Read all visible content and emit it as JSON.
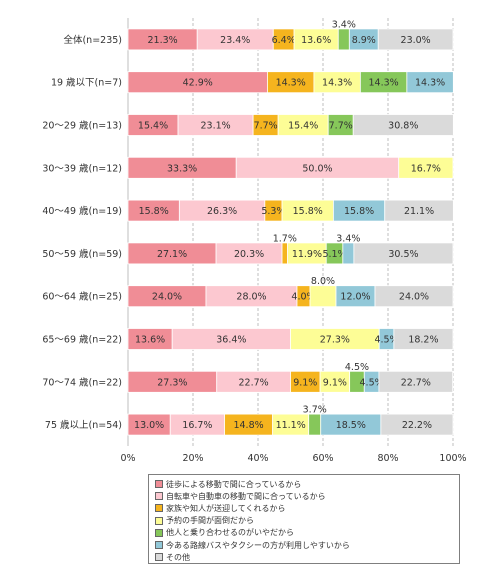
{
  "chart_data": {
    "type": "bar",
    "stacked": true,
    "orientation": "horizontal",
    "categories": [
      "全体(n=235)",
      "19 歳以下(n=7)",
      "20～29 歳(n=13)",
      "30～39 歳(n=12)",
      "40～49 歳(n=19)",
      "50～59 歳(n=59)",
      "60～64 歳(n=25)",
      "65～69 歳(n=22)",
      "70～74 歳(n=22)",
      "75 歳以上(n=54)"
    ],
    "series": [
      {
        "name": "徒歩による移動で間に合っているから",
        "color": "#f08d96",
        "values": [
          21.3,
          42.9,
          15.4,
          33.3,
          15.8,
          27.1,
          24.0,
          13.6,
          27.3,
          13.0
        ]
      },
      {
        "name": "自転車や自動車の移動で間に合っているから",
        "color": "#fcc8d0",
        "values": [
          23.4,
          0,
          23.1,
          50.0,
          26.3,
          20.3,
          28.0,
          36.4,
          22.7,
          16.7
        ]
      },
      {
        "name": "家族や知人が送迎してくれるから",
        "color": "#f5b41e",
        "values": [
          6.4,
          14.3,
          7.7,
          0,
          5.3,
          1.7,
          4.0,
          0,
          9.1,
          14.8
        ]
      },
      {
        "name": "予約の手間が面倒だから",
        "color": "#fdfd96",
        "values": [
          13.6,
          14.3,
          15.4,
          16.7,
          15.8,
          11.9,
          8.0,
          27.3,
          9.1,
          11.1
        ]
      },
      {
        "name": "他人と乗り合わせるのがいやだから",
        "color": "#86c75a",
        "values": [
          3.4,
          14.3,
          7.7,
          0,
          0,
          5.1,
          0,
          0,
          4.5,
          3.7
        ]
      },
      {
        "name": "今ある路線バスやタクシーの方が利用しやすいから",
        "color": "#92c8d8",
        "values": [
          8.9,
          14.3,
          0,
          0,
          15.8,
          3.4,
          12.0,
          4.5,
          4.5,
          18.5
        ]
      },
      {
        "name": "その他",
        "color": "#dadada",
        "values": [
          23.0,
          0,
          30.8,
          0,
          21.1,
          30.5,
          24.0,
          18.2,
          22.7,
          22.2
        ]
      }
    ],
    "data_labels": [
      [
        "21.3%",
        "23.4%",
        "6.4%",
        "13.6%",
        "3.4%",
        "8.9%",
        "23.0%"
      ],
      [
        "42.9%",
        "",
        "14.3%",
        "14.3%",
        "14.3%",
        "14.3%",
        ""
      ],
      [
        "15.4%",
        "23.1%",
        "7.7%",
        "15.4%",
        "7.7%",
        "",
        "30.8%"
      ],
      [
        "33.3%",
        "50.0%",
        "",
        "16.7%",
        "",
        "",
        ""
      ],
      [
        "15.8%",
        "26.3%",
        "5.3%",
        "15.8%",
        "",
        "15.8%",
        "21.1%"
      ],
      [
        "27.1%",
        "20.3%",
        "1.7%",
        "11.9%",
        "5.1%",
        "3.4%",
        "30.5%"
      ],
      [
        "24.0%",
        "28.0%",
        "4.0%",
        "8.0%",
        "",
        "12.0%",
        "24.0%"
      ],
      [
        "13.6%",
        "36.4%",
        "",
        "27.3%",
        "",
        "4.5%",
        "18.2%"
      ],
      [
        "27.3%",
        "22.7%",
        "9.1%",
        "9.1%",
        "4.5%",
        "4.5%",
        "22.7%"
      ],
      [
        "13.0%",
        "16.7%",
        "14.8%",
        "11.1%",
        "3.7%",
        "18.5%",
        "22.2%"
      ]
    ],
    "raised_labels": [
      [
        0,
        4
      ],
      [
        5,
        2
      ],
      [
        5,
        5
      ],
      [
        6,
        3
      ],
      [
        8,
        4
      ],
      [
        9,
        4
      ]
    ],
    "x_ticks": [
      "0%",
      "20%",
      "40%",
      "60%",
      "80%",
      "100%"
    ],
    "xlim": [
      0,
      100
    ],
    "grid": true,
    "legend_position": "bottom"
  }
}
